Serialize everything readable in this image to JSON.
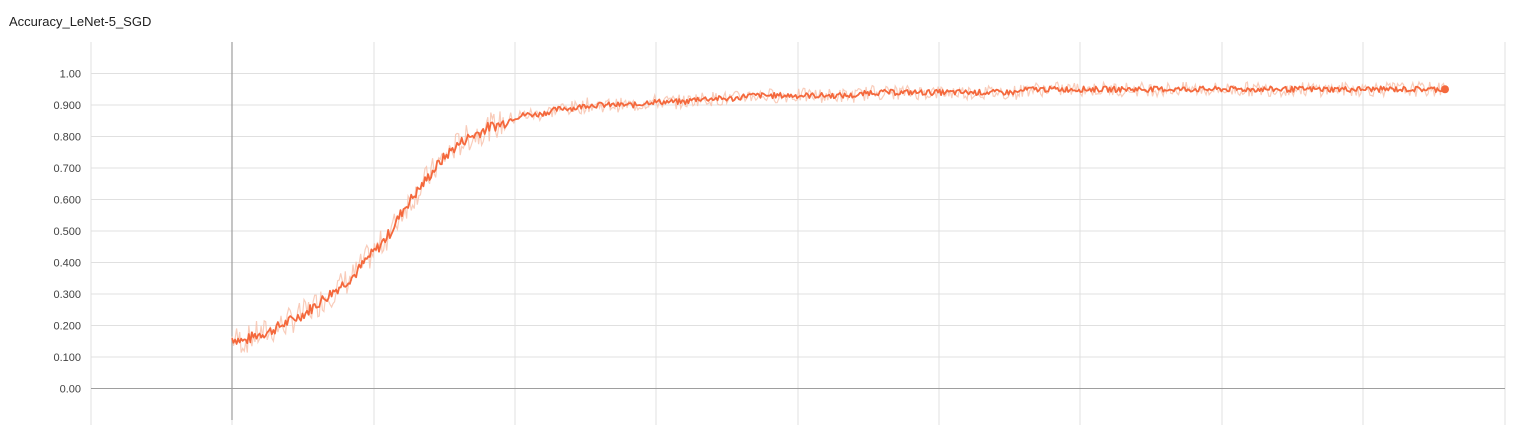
{
  "chart_data": {
    "type": "line",
    "title": "Accuracy_LeNet-5_SGD",
    "xlabel": "",
    "ylabel": "",
    "ylim": [
      -0.1,
      1.1
    ],
    "y_ticks": [
      "0.00",
      "0.100",
      "0.200",
      "0.300",
      "0.400",
      "0.500",
      "0.600",
      "0.700",
      "0.800",
      "0.900",
      "1.00"
    ],
    "y_tick_values": [
      0,
      0.1,
      0.2,
      0.3,
      0.4,
      0.5,
      0.6,
      0.7,
      0.8,
      0.9,
      1.0
    ],
    "x_tick_labels": [],
    "grid": true,
    "colors": {
      "line": "#f4683c",
      "raw_line": "#f8bfa9",
      "grid": "#e0e0e0",
      "axis": "#9e9e9e"
    },
    "series": [
      {
        "smoothed": true,
        "y": [
          0.16,
          0.15,
          0.17,
          0.18,
          0.2,
          0.22,
          0.24,
          0.27,
          0.3,
          0.33,
          0.36,
          0.41,
          0.45,
          0.5,
          0.57,
          0.62,
          0.67,
          0.72,
          0.76,
          0.79,
          0.81,
          0.83,
          0.84,
          0.86,
          0.87,
          0.87,
          0.88,
          0.89,
          0.89,
          0.9,
          0.9,
          0.9,
          0.9,
          0.9,
          0.91,
          0.91,
          0.91,
          0.91,
          0.92,
          0.92,
          0.92,
          0.92,
          0.93,
          0.93,
          0.93,
          0.93,
          0.93,
          0.93,
          0.93,
          0.93,
          0.93,
          0.93,
          0.94,
          0.94,
          0.94,
          0.94,
          0.94,
          0.94,
          0.94,
          0.94,
          0.94,
          0.94,
          0.94,
          0.94,
          0.94,
          0.95,
          0.95,
          0.95,
          0.95,
          0.95,
          0.95,
          0.95,
          0.95,
          0.95,
          0.95,
          0.95,
          0.95,
          0.95,
          0.95,
          0.95,
          0.95,
          0.95,
          0.95,
          0.95,
          0.95,
          0.95,
          0.95,
          0.95,
          0.95,
          0.95,
          0.95,
          0.95,
          0.95,
          0.95,
          0.95,
          0.95,
          0.95,
          0.95,
          0.95,
          0.95
        ]
      }
    ]
  }
}
